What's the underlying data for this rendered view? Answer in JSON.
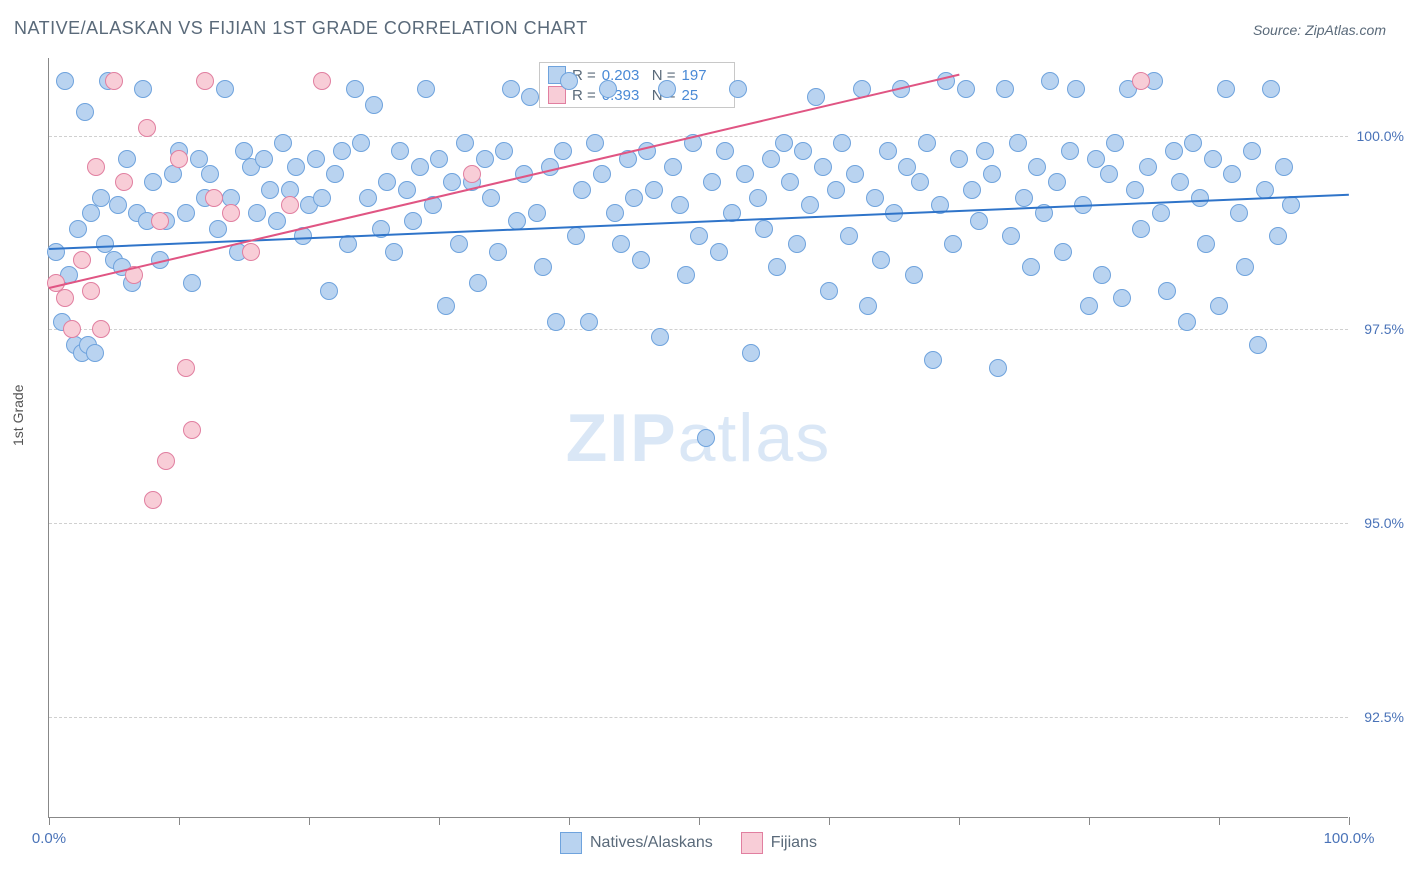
{
  "title": "NATIVE/ALASKAN VS FIJIAN 1ST GRADE CORRELATION CHART",
  "source_label": "Source: ",
  "source_value": "ZipAtlas.com",
  "yaxis_title": "1st Grade",
  "watermark_bold": "ZIP",
  "watermark_rest": "atlas",
  "chart": {
    "type": "scatter",
    "xlim": [
      0,
      100
    ],
    "ylim": [
      91.2,
      101.0
    ],
    "y_gridlines": [
      92.5,
      95.0,
      97.5,
      100.0
    ],
    "y_tick_labels": [
      "92.5%",
      "95.0%",
      "97.5%",
      "100.0%"
    ],
    "x_ticks": [
      0,
      10,
      20,
      30,
      40,
      50,
      60,
      70,
      80,
      90,
      100
    ],
    "x_labels": {
      "0": "0.0%",
      "100": "100.0%"
    },
    "background_color": "#ffffff",
    "grid_color": "#d0d0d0",
    "axis_color": "#888888",
    "tick_label_color": "#4a73b8",
    "point_radius": 9,
    "series": [
      {
        "name": "Natives/Alaskans",
        "fill": "#b9d3f0",
        "stroke": "#6fa3dd",
        "trend_color": "#2f74c9",
        "R": "0.203",
        "N": "197",
        "trend": {
          "x1": 0,
          "y1": 98.55,
          "x2": 100,
          "y2": 99.25
        },
        "points": [
          [
            0.5,
            98.5
          ],
          [
            1,
            97.6
          ],
          [
            1.2,
            100.7
          ],
          [
            1.5,
            98.2
          ],
          [
            2,
            97.3
          ],
          [
            2.2,
            98.8
          ],
          [
            2.5,
            97.2
          ],
          [
            2.8,
            100.3
          ],
          [
            3,
            97.3
          ],
          [
            3.2,
            99.0
          ],
          [
            3.5,
            97.2
          ],
          [
            4,
            99.2
          ],
          [
            4.3,
            98.6
          ],
          [
            4.5,
            100.7
          ],
          [
            5,
            98.4
          ],
          [
            5.3,
            99.1
          ],
          [
            5.6,
            98.3
          ],
          [
            6,
            99.7
          ],
          [
            6.4,
            98.1
          ],
          [
            6.8,
            99.0
          ],
          [
            7.2,
            100.6
          ],
          [
            7.5,
            98.9
          ],
          [
            8,
            99.4
          ],
          [
            8.5,
            98.4
          ],
          [
            9,
            98.9
          ],
          [
            9.5,
            99.5
          ],
          [
            10,
            99.8
          ],
          [
            10.5,
            99.0
          ],
          [
            11,
            98.1
          ],
          [
            11.5,
            99.7
          ],
          [
            12,
            99.2
          ],
          [
            12.4,
            99.5
          ],
          [
            13,
            98.8
          ],
          [
            13.5,
            100.6
          ],
          [
            14,
            99.2
          ],
          [
            14.5,
            98.5
          ],
          [
            15,
            99.8
          ],
          [
            15.5,
            99.6
          ],
          [
            16,
            99.0
          ],
          [
            16.5,
            99.7
          ],
          [
            17,
            99.3
          ],
          [
            17.5,
            98.9
          ],
          [
            18,
            99.9
          ],
          [
            18.5,
            99.3
          ],
          [
            19,
            99.6
          ],
          [
            19.5,
            98.7
          ],
          [
            20,
            99.1
          ],
          [
            20.5,
            99.7
          ],
          [
            21,
            99.2
          ],
          [
            21.5,
            98.0
          ],
          [
            22,
            99.5
          ],
          [
            22.5,
            99.8
          ],
          [
            23,
            98.6
          ],
          [
            23.5,
            100.6
          ],
          [
            24,
            99.9
          ],
          [
            24.5,
            99.2
          ],
          [
            25,
            100.4
          ],
          [
            25.5,
            98.8
          ],
          [
            26,
            99.4
          ],
          [
            26.5,
            98.5
          ],
          [
            27,
            99.8
          ],
          [
            27.5,
            99.3
          ],
          [
            28,
            98.9
          ],
          [
            28.5,
            99.6
          ],
          [
            29,
            100.6
          ],
          [
            29.5,
            99.1
          ],
          [
            30,
            99.7
          ],
          [
            30.5,
            97.8
          ],
          [
            31,
            99.4
          ],
          [
            31.5,
            98.6
          ],
          [
            32,
            99.9
          ],
          [
            32.5,
            99.4
          ],
          [
            33,
            98.1
          ],
          [
            33.5,
            99.7
          ],
          [
            34,
            99.2
          ],
          [
            34.5,
            98.5
          ],
          [
            35,
            99.8
          ],
          [
            35.5,
            100.6
          ],
          [
            36,
            98.9
          ],
          [
            36.5,
            99.5
          ],
          [
            37,
            100.5
          ],
          [
            37.5,
            99.0
          ],
          [
            38,
            98.3
          ],
          [
            38.5,
            99.6
          ],
          [
            39,
            97.6
          ],
          [
            39.5,
            99.8
          ],
          [
            40,
            100.7
          ],
          [
            40.5,
            98.7
          ],
          [
            41,
            99.3
          ],
          [
            41.5,
            97.6
          ],
          [
            42,
            99.9
          ],
          [
            42.5,
            99.5
          ],
          [
            43,
            100.6
          ],
          [
            43.5,
            99.0
          ],
          [
            44,
            98.6
          ],
          [
            44.5,
            99.7
          ],
          [
            45,
            99.2
          ],
          [
            45.5,
            98.4
          ],
          [
            46,
            99.8
          ],
          [
            46.5,
            99.3
          ],
          [
            47,
            97.4
          ],
          [
            47.5,
            100.6
          ],
          [
            48,
            99.6
          ],
          [
            48.5,
            99.1
          ],
          [
            49,
            98.2
          ],
          [
            49.5,
            99.9
          ],
          [
            50,
            98.7
          ],
          [
            50.5,
            96.1
          ],
          [
            51,
            99.4
          ],
          [
            51.5,
            98.5
          ],
          [
            52,
            99.8
          ],
          [
            52.5,
            99.0
          ],
          [
            53,
            100.6
          ],
          [
            53.5,
            99.5
          ],
          [
            54,
            97.2
          ],
          [
            54.5,
            99.2
          ],
          [
            55,
            98.8
          ],
          [
            55.5,
            99.7
          ],
          [
            56,
            98.3
          ],
          [
            56.5,
            99.9
          ],
          [
            57,
            99.4
          ],
          [
            57.5,
            98.6
          ],
          [
            58,
            99.8
          ],
          [
            58.5,
            99.1
          ],
          [
            59,
            100.5
          ],
          [
            59.5,
            99.6
          ],
          [
            60,
            98.0
          ],
          [
            60.5,
            99.3
          ],
          [
            61,
            99.9
          ],
          [
            61.5,
            98.7
          ],
          [
            62,
            99.5
          ],
          [
            62.5,
            100.6
          ],
          [
            63,
            97.8
          ],
          [
            63.5,
            99.2
          ],
          [
            64,
            98.4
          ],
          [
            64.5,
            99.8
          ],
          [
            65,
            99.0
          ],
          [
            65.5,
            100.6
          ],
          [
            66,
            99.6
          ],
          [
            66.5,
            98.2
          ],
          [
            67,
            99.4
          ],
          [
            67.5,
            99.9
          ],
          [
            68,
            97.1
          ],
          [
            68.5,
            99.1
          ],
          [
            69,
            100.7
          ],
          [
            69.5,
            98.6
          ],
          [
            70,
            99.7
          ],
          [
            70.5,
            100.6
          ],
          [
            71,
            99.3
          ],
          [
            71.5,
            98.9
          ],
          [
            72,
            99.8
          ],
          [
            72.5,
            99.5
          ],
          [
            73,
            97.0
          ],
          [
            73.5,
            100.6
          ],
          [
            74,
            98.7
          ],
          [
            74.5,
            99.9
          ],
          [
            75,
            99.2
          ],
          [
            75.5,
            98.3
          ],
          [
            76,
            99.6
          ],
          [
            76.5,
            99.0
          ],
          [
            77,
            100.7
          ],
          [
            77.5,
            99.4
          ],
          [
            78,
            98.5
          ],
          [
            78.5,
            99.8
          ],
          [
            79,
            100.6
          ],
          [
            79.5,
            99.1
          ],
          [
            80,
            97.8
          ],
          [
            80.5,
            99.7
          ],
          [
            81,
            98.2
          ],
          [
            81.5,
            99.5
          ],
          [
            82,
            99.9
          ],
          [
            82.5,
            97.9
          ],
          [
            83,
            100.6
          ],
          [
            83.5,
            99.3
          ],
          [
            84,
            98.8
          ],
          [
            84.5,
            99.6
          ],
          [
            85,
            100.7
          ],
          [
            85.5,
            99.0
          ],
          [
            86,
            98.0
          ],
          [
            86.5,
            99.8
          ],
          [
            87,
            99.4
          ],
          [
            87.5,
            97.6
          ],
          [
            88,
            99.9
          ],
          [
            88.5,
            99.2
          ],
          [
            89,
            98.6
          ],
          [
            89.5,
            99.7
          ],
          [
            90,
            97.8
          ],
          [
            90.5,
            100.6
          ],
          [
            91,
            99.5
          ],
          [
            91.5,
            99.0
          ],
          [
            92,
            98.3
          ],
          [
            92.5,
            99.8
          ],
          [
            93,
            97.3
          ],
          [
            93.5,
            99.3
          ],
          [
            94,
            100.6
          ],
          [
            94.5,
            98.7
          ],
          [
            95,
            99.6
          ],
          [
            95.5,
            99.1
          ]
        ]
      },
      {
        "name": "Fijians",
        "fill": "#f8cdd7",
        "stroke": "#e17fa0",
        "trend_color": "#e05583",
        "R": "0.393",
        "N": "25",
        "trend": {
          "x1": 0,
          "y1": 98.05,
          "x2": 70,
          "y2": 100.8
        },
        "points": [
          [
            0.5,
            98.1
          ],
          [
            1.2,
            97.9
          ],
          [
            1.8,
            97.5
          ],
          [
            2.5,
            98.4
          ],
          [
            3.2,
            98.0
          ],
          [
            3.6,
            99.6
          ],
          [
            4.0,
            97.5
          ],
          [
            5.0,
            100.7
          ],
          [
            5.8,
            99.4
          ],
          [
            6.5,
            98.2
          ],
          [
            7.5,
            100.1
          ],
          [
            8.0,
            95.3
          ],
          [
            8.5,
            98.9
          ],
          [
            9.0,
            95.8
          ],
          [
            10.0,
            99.7
          ],
          [
            10.5,
            97.0
          ],
          [
            11.0,
            96.2
          ],
          [
            12.0,
            100.7
          ],
          [
            12.7,
            99.2
          ],
          [
            14.0,
            99.0
          ],
          [
            15.5,
            98.5
          ],
          [
            18.5,
            99.1
          ],
          [
            21.0,
            100.7
          ],
          [
            32.5,
            99.5
          ],
          [
            84.0,
            100.7
          ]
        ]
      }
    ]
  },
  "legend_bottom": {
    "series1_label": "Natives/Alaskans",
    "series2_label": "Fijians"
  },
  "stat_box": {
    "row1": {
      "r_label": "R =",
      "r_val": "0.203",
      "n_label": "N =",
      "n_val": "197"
    },
    "row2": {
      "r_label": "R =",
      "r_val": "0.393",
      "n_label": "N =",
      "n_val": "25"
    }
  },
  "colors": {
    "title_color": "#5a6a7a",
    "series1_fill": "#b9d3f0",
    "series1_stroke": "#6fa3dd",
    "series2_fill": "#f8cdd7",
    "series2_stroke": "#e17fa0"
  }
}
